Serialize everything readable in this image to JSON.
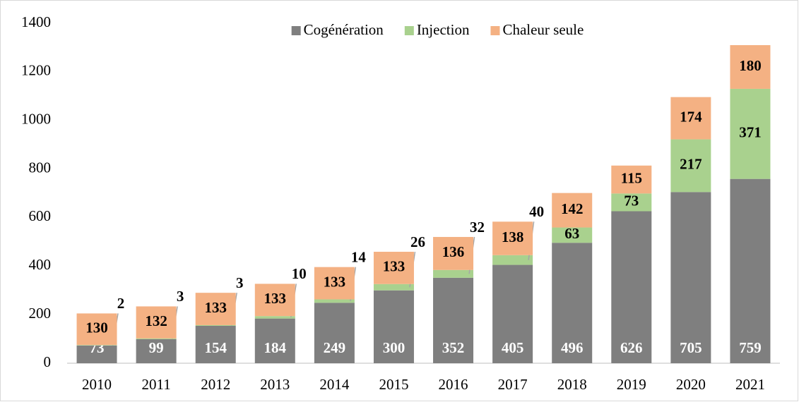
{
  "chart_data": {
    "type": "stacked_bar",
    "categories": [
      "2010",
      "2011",
      "2012",
      "2013",
      "2014",
      "2015",
      "2016",
      "2017",
      "2018",
      "2019",
      "2020",
      "2021"
    ],
    "series": [
      {
        "name": "Cogénération",
        "color": "#7f7f7f",
        "values": [
          73,
          99,
          154,
          184,
          249,
          300,
          352,
          405,
          496,
          626,
          705,
          759
        ]
      },
      {
        "name": "Injection",
        "color": "#a9d18e",
        "values": [
          2,
          3,
          3,
          10,
          14,
          26,
          32,
          40,
          63,
          73,
          217,
          371
        ]
      },
      {
        "name": "Chaleur seule",
        "color": "#f4b183",
        "values": [
          130,
          132,
          133,
          133,
          133,
          133,
          136,
          138,
          142,
          115,
          174,
          180
        ]
      }
    ],
    "ylim": [
      0,
      1400
    ],
    "yticks": [
      0,
      200,
      400,
      600,
      800,
      1000,
      1200,
      1400
    ],
    "grid": false,
    "legend": "top"
  }
}
